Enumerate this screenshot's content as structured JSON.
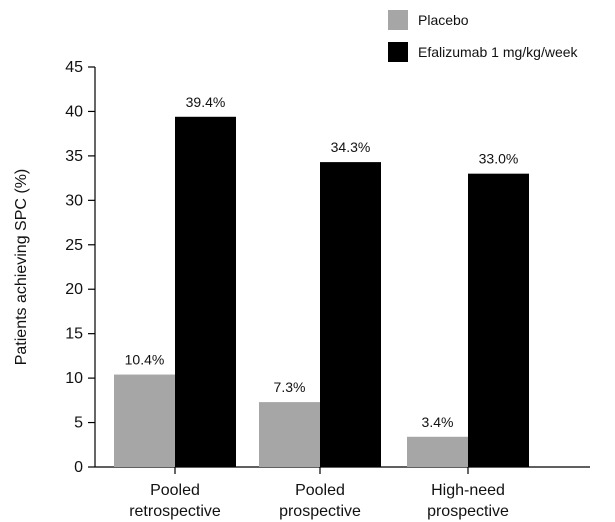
{
  "chart_data": {
    "type": "bar",
    "title": "",
    "xlabel": "",
    "ylabel": "Patients achieving SPC (%)",
    "ylim": [
      0,
      45
    ],
    "yticks": [
      0,
      5,
      10,
      15,
      20,
      25,
      30,
      35,
      40,
      45
    ],
    "categories": [
      [
        "Pooled",
        "retrospective"
      ],
      [
        "Pooled",
        "prospective"
      ],
      [
        "High-need",
        "prospective"
      ]
    ],
    "series": [
      {
        "name": "Placebo",
        "color": "#a6a6a6",
        "values": [
          10.4,
          7.3,
          3.4
        ],
        "labels": [
          "10.4%",
          "7.3%",
          "3.4%"
        ]
      },
      {
        "name": "Efalizumab 1 mg/kg/week",
        "color": "#000000",
        "values": [
          39.4,
          34.3,
          33.0
        ],
        "labels": [
          "39.4%",
          "34.3%",
          "33.0%"
        ]
      }
    ],
    "grid": false,
    "legend_position": "top-right"
  }
}
